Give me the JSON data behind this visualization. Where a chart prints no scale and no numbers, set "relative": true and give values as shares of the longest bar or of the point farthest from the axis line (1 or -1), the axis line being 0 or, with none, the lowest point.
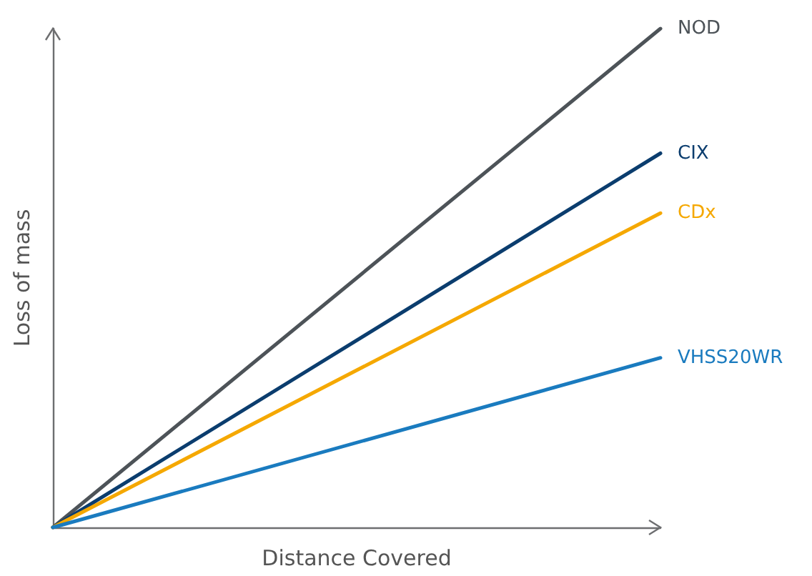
{
  "chart_data": {
    "type": "line",
    "relative": true,
    "xlabel": "Distance Covered",
    "ylabel": "Loss of mass",
    "categories": [
      null,
      null
    ],
    "series": [
      {
        "name": "NOD",
        "color": "#4d5358",
        "values": [
          0,
          1
        ]
      },
      {
        "name": "CIX",
        "color": "#0b3d6e",
        "values": [
          0,
          0.75
        ]
      },
      {
        "name": "CDx",
        "color": "#f5a800",
        "values": [
          0,
          0.63
        ]
      },
      {
        "name": "VHSS20WR",
        "color": "#1a7bbf",
        "values": [
          0,
          0.34
        ]
      }
    ],
    "marker": "none",
    "line_style": "solid",
    "grid": false,
    "legend": false
  }
}
